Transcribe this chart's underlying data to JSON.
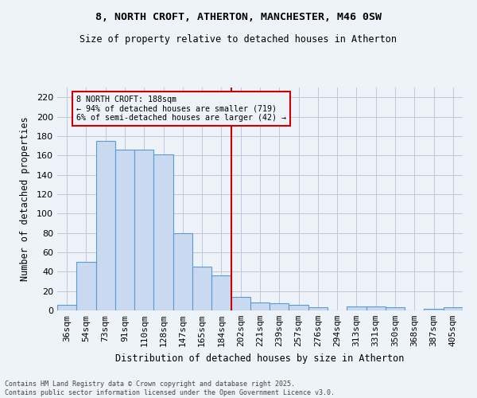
{
  "title": "8, NORTH CROFT, ATHERTON, MANCHESTER, M46 0SW",
  "subtitle": "Size of property relative to detached houses in Atherton",
  "xlabel": "Distribution of detached houses by size in Atherton",
  "ylabel": "Number of detached properties",
  "footnote": "Contains HM Land Registry data © Crown copyright and database right 2025.\nContains public sector information licensed under the Open Government Licence v3.0.",
  "categories": [
    "36sqm",
    "54sqm",
    "73sqm",
    "91sqm",
    "110sqm",
    "128sqm",
    "147sqm",
    "165sqm",
    "184sqm",
    "202sqm",
    "221sqm",
    "239sqm",
    "257sqm",
    "276sqm",
    "294sqm",
    "313sqm",
    "331sqm",
    "350sqm",
    "368sqm",
    "387sqm",
    "405sqm"
  ],
  "values": [
    6,
    50,
    175,
    166,
    166,
    161,
    80,
    45,
    36,
    14,
    8,
    7,
    6,
    3,
    0,
    4,
    4,
    3,
    0,
    2,
    3
  ],
  "bar_color": "#c9d9f0",
  "bar_edge_color": "#5b9bd5",
  "vline_index": 8,
  "vline_color": "#cc0000",
  "annotation_text": "8 NORTH CROFT: 188sqm\n← 94% of detached houses are smaller (719)\n6% of semi-detached houses are larger (42) →",
  "annotation_box_color": "#cc0000",
  "background_color": "#eef2f9",
  "ylim": [
    0,
    230
  ],
  "yticks": [
    0,
    20,
    40,
    60,
    80,
    100,
    120,
    140,
    160,
    180,
    200,
    220
  ]
}
